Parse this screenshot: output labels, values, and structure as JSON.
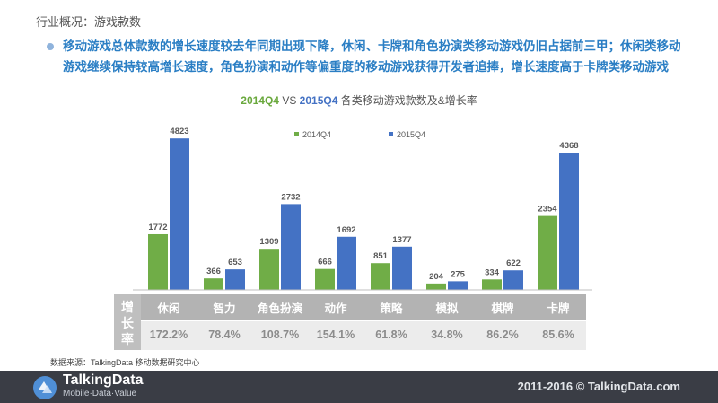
{
  "breadcrumb": "行业概况：游戏款数",
  "headline": "移动游戏总体款数的增长速度较去年同期出现下降，休闲、卡牌和角色扮演类移动游戏仍旧占据前三甲；休闲类移动游戏继续保持较高增长速度，角色扮演和动作等偏重度的移动游戏获得开发者追捧，增长速度高于卡牌类移动游戏",
  "chart_title": {
    "year_a": "2014Q4",
    "vs": " VS ",
    "year_b": "2015Q4",
    "suffix": " 各类移动游戏款数及&增长率"
  },
  "chart_data": {
    "type": "bar",
    "categories": [
      "休闲",
      "智力",
      "角色扮演",
      "动作",
      "策略",
      "模拟",
      "棋牌",
      "卡牌"
    ],
    "series": [
      {
        "name": "2014Q4",
        "color": "#70ad47",
        "values": [
          1772,
          366,
          1309,
          666,
          851,
          204,
          334,
          2354
        ]
      },
      {
        "name": "2015Q4",
        "color": "#4472c4",
        "values": [
          4823,
          653,
          2732,
          1692,
          1377,
          275,
          622,
          4368
        ]
      }
    ],
    "ylim": [
      0,
      5000
    ],
    "legend_position": "top-center",
    "grid": false,
    "growth_label": "增长率",
    "growth_rates": [
      "172.2%",
      "78.4%",
      "108.7%",
      "154.1%",
      "61.8%",
      "34.8%",
      "86.2%",
      "85.6%"
    ]
  },
  "source": "数据来源：TalkingData 移动数据研究中心",
  "footer": {
    "brand": "TalkingData",
    "tagline": "Mobile·Data·Value",
    "copyright": "2011-2016 © TalkingData.com"
  }
}
